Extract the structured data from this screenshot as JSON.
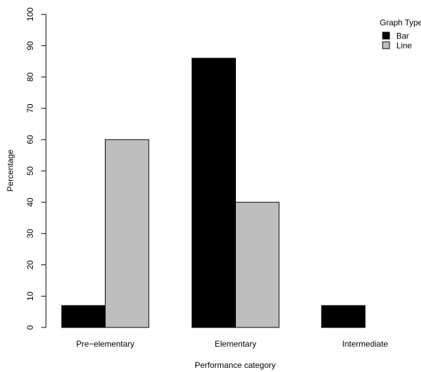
{
  "chart_data": {
    "type": "bar",
    "categories": [
      "Pre−elementary",
      "Elementary",
      "Intermediate"
    ],
    "series": [
      {
        "name": "Bar",
        "values": [
          7,
          86,
          7
        ],
        "color": "#000000"
      },
      {
        "name": "Line",
        "values": [
          60,
          40,
          0
        ],
        "color": "#bebebe"
      }
    ],
    "xlabel": "Performance category",
    "ylabel": "Percentage",
    "ylim": [
      0,
      100
    ],
    "yticks": [
      "0",
      "10",
      "20",
      "30",
      "40",
      "50",
      "60",
      "70",
      "80",
      "90",
      "100"
    ],
    "grid": false,
    "legend": {
      "title": "Graph Type",
      "placement": "top-right"
    }
  }
}
